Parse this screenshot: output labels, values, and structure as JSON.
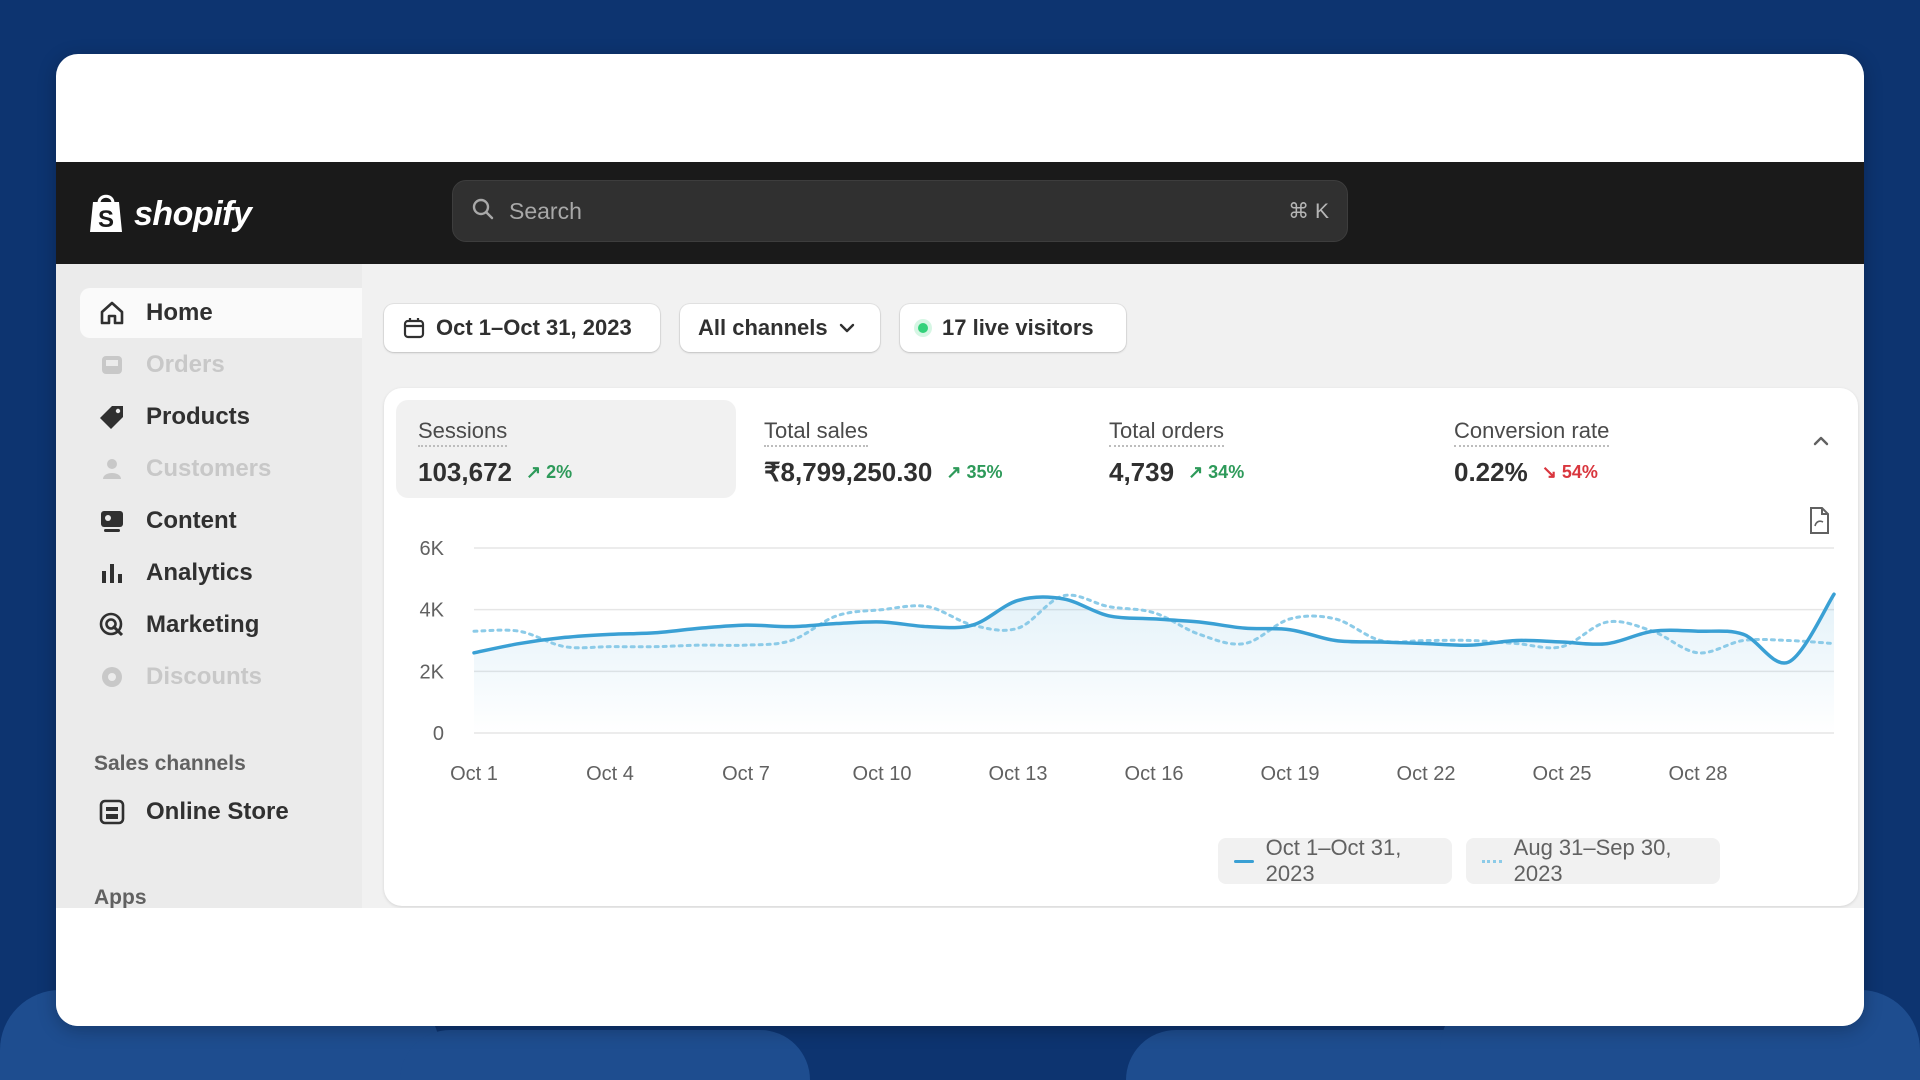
{
  "app": {
    "logo_text": "shopify"
  },
  "search": {
    "placeholder": "Search",
    "shortcut": "⌘ K"
  },
  "sidebar": {
    "items": [
      {
        "label": "Home",
        "icon": "home-icon",
        "state": "active"
      },
      {
        "label": "Orders",
        "icon": "inbox-icon",
        "state": "dim"
      },
      {
        "label": "Products",
        "icon": "tag-icon",
        "state": "normal"
      },
      {
        "label": "Customers",
        "icon": "person-icon",
        "state": "dim"
      },
      {
        "label": "Content",
        "icon": "content-icon",
        "state": "normal"
      },
      {
        "label": "Analytics",
        "icon": "bar-chart-icon",
        "state": "normal"
      },
      {
        "label": "Marketing",
        "icon": "target-icon",
        "state": "normal"
      },
      {
        "label": "Discounts",
        "icon": "gear-badge-icon",
        "state": "dim"
      }
    ],
    "sales_channels_title": "Sales channels",
    "sales_channels": [
      {
        "label": "Online Store",
        "icon": "store-icon"
      }
    ],
    "apps_title": "Apps"
  },
  "filters": {
    "date_range": "Oct 1–Oct 31, 2023",
    "channels": "All channels",
    "live_visitors": "17 live visitors"
  },
  "metrics": [
    {
      "label": "Sessions",
      "value": "103,672",
      "change": "2%",
      "direction": "up"
    },
    {
      "label": "Total sales",
      "value": "₹8,799,250.30",
      "change": "35%",
      "direction": "up"
    },
    {
      "label": "Total orders",
      "value": "4,739",
      "change": "34%",
      "direction": "up"
    },
    {
      "label": "Conversion rate",
      "value": "0.22%",
      "change": "54%",
      "direction": "down"
    }
  ],
  "colors": {
    "current": "#3aa0d4",
    "previous": "#8ccbe8",
    "up": "#2e9a5a",
    "down": "#d9363e",
    "live_dot": "#33d17a"
  },
  "chart_data": {
    "type": "line",
    "y_ticks": [
      "6K",
      "4K",
      "2K",
      "0"
    ],
    "ylim": [
      0,
      6000
    ],
    "x_ticks": [
      "Oct 1",
      "Oct 4",
      "Oct 7",
      "Oct 10",
      "Oct 13",
      "Oct 16",
      "Oct 19",
      "Oct 22",
      "Oct 25",
      "Oct 28"
    ],
    "x": [
      1,
      2,
      3,
      4,
      5,
      6,
      7,
      8,
      9,
      10,
      11,
      12,
      13,
      14,
      15,
      16,
      17,
      18,
      19,
      20,
      21,
      22,
      23,
      24,
      25,
      26,
      27,
      28,
      29,
      30,
      31
    ],
    "series": [
      {
        "name": "Oct 1–Oct 31, 2023",
        "style": "solid",
        "values": [
          2600,
          2900,
          3100,
          3200,
          3250,
          3400,
          3500,
          3450,
          3550,
          3600,
          3450,
          3500,
          4300,
          4350,
          3800,
          3700,
          3600,
          3400,
          3350,
          3000,
          2950,
          2900,
          2850,
          3000,
          2950,
          2900,
          3300,
          3300,
          3200,
          2300,
          4500
        ]
      },
      {
        "name": "Aug 31–Sep 30, 2023",
        "style": "dotted",
        "values": [
          3300,
          3300,
          2800,
          2800,
          2800,
          2850,
          2850,
          3000,
          3800,
          4000,
          4100,
          3500,
          3400,
          4450,
          4100,
          3900,
          3200,
          2900,
          3700,
          3700,
          3000,
          3000,
          3000,
          2900,
          2800,
          3600,
          3300,
          2600,
          3000,
          3000,
          2900
        ]
      }
    ],
    "grid": true,
    "legend_position": "bottom-right"
  }
}
